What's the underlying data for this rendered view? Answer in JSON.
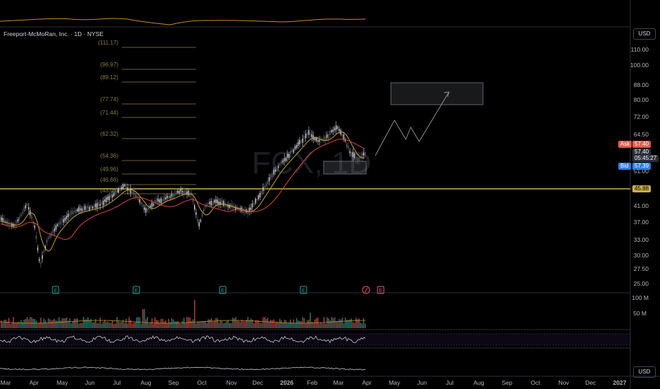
{
  "symbol": {
    "title": "Freeport-McMoRan, Inc. · 1D · NYSE",
    "watermark": "FCX, 1D"
  },
  "price_scale": {
    "currency_top": "USD",
    "currency_bottom": "USD",
    "ticks": [
      "110.00",
      "100.00",
      "88.00",
      "80.00",
      "72.00",
      "64.50",
      "51.00",
      "41.00",
      "37.00",
      "33.00",
      "30.00",
      "27.50",
      "25.00"
    ],
    "volume_ticks": [
      "100 M",
      "50 M"
    ]
  },
  "fib_levels": [
    "(111.17)",
    "(96.97)",
    "(89.12)",
    "(77.74)",
    "(71.44)",
    "(62.32)",
    "(54.36)",
    "(49.96)",
    "(46.66)",
    "(43.06)"
  ],
  "quote_tags": {
    "ask_label": "Ask",
    "ask_value": "57.40",
    "last_value": "57.40",
    "countdown": "05:45:27",
    "bid_label": "Bid",
    "bid_value": "57.39",
    "horizontal_level": "45.88"
  },
  "time_axis": {
    "months": [
      "Mar",
      "Apr",
      "May",
      "Jun",
      "Jul",
      "Aug",
      "Sep",
      "Oct",
      "Nov",
      "Dec",
      "2026",
      "Feb",
      "Mar",
      "Apr",
      "May",
      "Jun",
      "Jul",
      "Aug",
      "Sep",
      "Oct",
      "Nov",
      "Dec",
      "2027"
    ]
  },
  "event_markers": [
    "E",
    "E",
    "E",
    "E",
    "E"
  ],
  "colors": {
    "background": "#000000",
    "up_candle": "#d1d4dc",
    "down_candle": "#5d606b",
    "ma_fast": "#c9a227",
    "ma_slow": "#e0453a",
    "horizontal_line": "#c9b04a",
    "ask_tag": "#e05a4e",
    "bid_tag": "#2f7fe0",
    "event_marker": "#26a69a",
    "volume_up": "#26a69a",
    "volume_down": "#ef5350"
  }
}
